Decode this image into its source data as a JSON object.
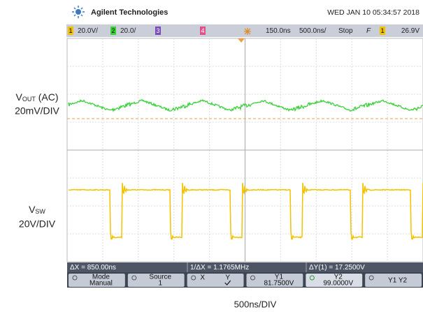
{
  "header": {
    "brand": "Agilent Technologies",
    "datetime": "WED JAN 10 05:34:57 2018"
  },
  "status_bar": {
    "ch1_num": "1",
    "ch1_scale": "20.0V/",
    "ch2_num": "2",
    "ch2_scale": "20.0/",
    "ch3_num": "3",
    "ch4_num": "4",
    "delay": "150.0ns",
    "timebase": "500.0ns/",
    "run_state": "Stop",
    "trigger_slope": "F",
    "trigger_source": "1",
    "trigger_level": "26.9V"
  },
  "measurements": [
    "ΔX = 850.00ns",
    "1/ΔX = 1.1765MHz",
    "ΔY(1) = 17.2500V"
  ],
  "softkeys": [
    {
      "label": "Mode",
      "value": "Manual"
    },
    {
      "label": "Source",
      "value": "1"
    },
    {
      "label": "X",
      "value": "Y"
    },
    {
      "label": "Y1",
      "value": "81.7500V"
    },
    {
      "label": "Y2",
      "value": "99.0000V"
    },
    {
      "label": "Y1 Y2"
    }
  ],
  "traces": [
    {
      "label_main": "V",
      "label_sub": "OUT",
      "label_suffix": " (AC)",
      "scale": "20mV/DIV"
    },
    {
      "label_main": "V",
      "label_sub": "SW",
      "scale": "20V/DIV"
    }
  ],
  "footer": "500ns/DIV"
}
